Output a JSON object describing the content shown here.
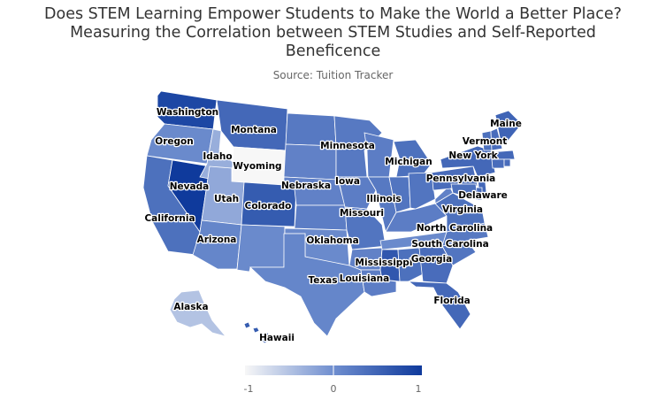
{
  "title_lines": [
    "Does STEM Learning Empower Students to Make the World a Better Place?",
    "Measuring the Correlation between STEM Studies and Self-Reported",
    "Beneficence"
  ],
  "subtitle": "Source: Tuition Tracker",
  "colors": {
    "low": "#f7f7f7",
    "mid": "#6f8ecf",
    "high": "#0f3a9c"
  },
  "legend": {
    "min": -1,
    "max": 1,
    "ticks": [
      "-1",
      "0",
      "1"
    ]
  },
  "chart_data": {
    "type": "choropleth",
    "region": "United States",
    "color_scale_range": [
      -1,
      1
    ],
    "states": [
      {
        "name": "Washington",
        "value": 0.85,
        "labeled": true
      },
      {
        "name": "Oregon",
        "value": 0.05,
        "labeled": true
      },
      {
        "name": "California",
        "value": 0.35,
        "labeled": true
      },
      {
        "name": "Nevada",
        "value": 1.0,
        "labeled": true
      },
      {
        "name": "Idaho",
        "value": -0.3,
        "labeled": true
      },
      {
        "name": "Montana",
        "value": 0.45,
        "labeled": true
      },
      {
        "name": "Wyoming",
        "value": -1.0,
        "labeled": true
      },
      {
        "name": "Utah",
        "value": -0.25,
        "labeled": true
      },
      {
        "name": "Colorado",
        "value": 0.6,
        "labeled": true
      },
      {
        "name": "Arizona",
        "value": 0.1,
        "labeled": true
      },
      {
        "name": "New Mexico",
        "value": 0.05,
        "labeled": false
      },
      {
        "name": "North Dakota",
        "value": 0.25,
        "labeled": false
      },
      {
        "name": "South Dakota",
        "value": 0.15,
        "labeled": false
      },
      {
        "name": "Nebraska",
        "value": 0.15,
        "labeled": true
      },
      {
        "name": "Kansas",
        "value": 0.2,
        "labeled": false
      },
      {
        "name": "Oklahoma",
        "value": 0.05,
        "labeled": true
      },
      {
        "name": "Texas",
        "value": 0.1,
        "labeled": true
      },
      {
        "name": "Minnesota",
        "value": 0.25,
        "labeled": true
      },
      {
        "name": "Iowa",
        "value": 0.2,
        "labeled": true
      },
      {
        "name": "Missouri",
        "value": 0.3,
        "labeled": true
      },
      {
        "name": "Arkansas",
        "value": 0.15,
        "labeled": false
      },
      {
        "name": "Louisiana",
        "value": 0.2,
        "labeled": true
      },
      {
        "name": "Wisconsin",
        "value": 0.2,
        "labeled": false
      },
      {
        "name": "Illinois",
        "value": 0.25,
        "labeled": true
      },
      {
        "name": "Michigan",
        "value": 0.35,
        "labeled": true
      },
      {
        "name": "Indiana",
        "value": 0.3,
        "labeled": false
      },
      {
        "name": "Ohio",
        "value": 0.3,
        "labeled": false
      },
      {
        "name": "Kentucky",
        "value": 0.2,
        "labeled": false
      },
      {
        "name": "Tennessee",
        "value": 0.05,
        "labeled": false
      },
      {
        "name": "Mississippi",
        "value": 0.65,
        "labeled": true
      },
      {
        "name": "Alabama",
        "value": 0.35,
        "labeled": false
      },
      {
        "name": "Georgia",
        "value": 0.4,
        "labeled": true
      },
      {
        "name": "Florida",
        "value": 0.45,
        "labeled": true
      },
      {
        "name": "South Carolina",
        "value": 0.3,
        "labeled": true
      },
      {
        "name": "North Carolina",
        "value": 0.25,
        "labeled": true
      },
      {
        "name": "Virginia",
        "value": 0.35,
        "labeled": true
      },
      {
        "name": "West Virginia",
        "value": 0.15,
        "labeled": false
      },
      {
        "name": "Pennsylvania",
        "value": 0.4,
        "labeled": true
      },
      {
        "name": "New York",
        "value": 0.45,
        "labeled": true
      },
      {
        "name": "Vermont",
        "value": 0.35,
        "labeled": true
      },
      {
        "name": "New Hampshire",
        "value": 0.4,
        "labeled": false
      },
      {
        "name": "Maine",
        "value": 0.5,
        "labeled": true
      },
      {
        "name": "Massachusetts",
        "value": 0.45,
        "labeled": false
      },
      {
        "name": "Connecticut",
        "value": 0.4,
        "labeled": false
      },
      {
        "name": "Rhode Island",
        "value": 0.4,
        "labeled": false
      },
      {
        "name": "New Jersey",
        "value": 0.45,
        "labeled": false
      },
      {
        "name": "Delaware",
        "value": 0.4,
        "labeled": true
      },
      {
        "name": "Maryland",
        "value": 0.35,
        "labeled": false
      },
      {
        "name": "Alaska",
        "value": -0.5,
        "labeled": true
      },
      {
        "name": "Hawaii",
        "value": 0.6,
        "labeled": true
      }
    ]
  }
}
